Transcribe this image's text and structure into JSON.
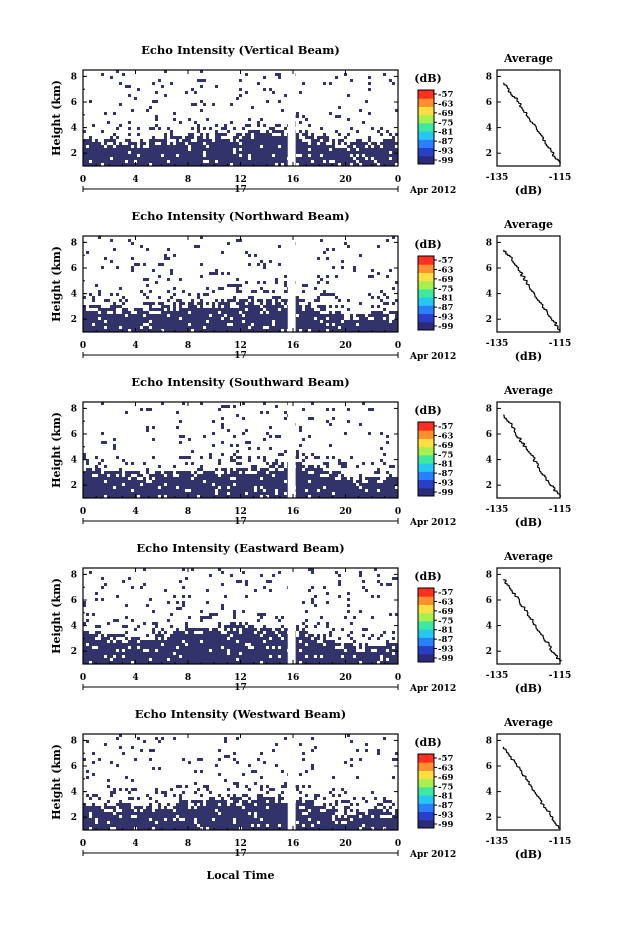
{
  "xlabel": "Local Time",
  "avg_title": "Average",
  "avg_xlabel": "(dB)",
  "colorbar_label": "(dB)",
  "colorbar_ticks": [
    "-57",
    "-63",
    "-69",
    "-75",
    "-81",
    "-87",
    "-93",
    "-99"
  ],
  "colorbar_colors": [
    "#2b2b78",
    "#2a3fc8",
    "#2a7fff",
    "#25c8f0",
    "#3de8a0",
    "#a8f050",
    "#ffe040",
    "#ff9030",
    "#ff3020"
  ],
  "plot_fill_color": "#33336b",
  "x_ticks": [
    "0",
    "4",
    "8",
    "12",
    "16",
    "20",
    "0"
  ],
  "date_day": "17",
  "date_month": "Apr 2012",
  "y_ticks": [
    "2",
    "4",
    "6",
    "8"
  ],
  "y_tick_values": [
    2,
    4,
    6,
    8
  ],
  "avg_y_ticks": [
    "2",
    "4",
    "6",
    "8"
  ],
  "avg_x_ticks": [
    "-135",
    "-115"
  ],
  "panels": [
    {
      "title": "Echo Intensity (Vertical Beam)",
      "ylabel": "Height (km)"
    },
    {
      "title": "Echo Intensity (Northward Beam)",
      "ylabel": "Height (km)"
    },
    {
      "title": "Echo Intensity (Southward Beam)",
      "ylabel": "Height (km)"
    },
    {
      "title": "Echo Intensity (Eastward Beam)",
      "ylabel": "Height (km)"
    },
    {
      "title": "Echo Intensity (Westward Beam)",
      "ylabel": "Height (km)"
    }
  ],
  "chart_data": [
    {
      "type": "heatmap",
      "title": "Echo Intensity (Vertical Beam)",
      "xlabel": "",
      "ylabel": "Height (km)",
      "xlim": [
        0,
        24
      ],
      "ylim": [
        1,
        8.5
      ],
      "colorbar_range": [
        -99,
        -57
      ],
      "top_of_dense_echo_km": [
        [
          0,
          3.3
        ],
        [
          4,
          3.1
        ],
        [
          8,
          3.6
        ],
        [
          12,
          3.8
        ],
        [
          16,
          4.1
        ],
        [
          20,
          2.9
        ],
        [
          24,
          3.2
        ]
      ],
      "data_gap_hours": [
        15.6,
        16.2
      ]
    },
    {
      "title": "Average",
      "type": "line",
      "xlabel": "(dB)",
      "xlim": [
        -135,
        -115
      ],
      "ylim": [
        1,
        8.5
      ],
      "x": [
        -133,
        -131,
        -129,
        -127,
        -125,
        -123,
        -121,
        -119,
        -117,
        -115
      ],
      "y": [
        7.5,
        6.8,
        6.2,
        5.5,
        4.8,
        4.0,
        3.3,
        2.6,
        1.8,
        1.2
      ]
    },
    {
      "type": "heatmap",
      "title": "Echo Intensity (Northward Beam)",
      "xlabel": "",
      "ylabel": "Height (km)",
      "xlim": [
        0,
        24
      ],
      "ylim": [
        1,
        8.5
      ],
      "colorbar_range": [
        -99,
        -57
      ],
      "top_of_dense_echo_km": [
        [
          0,
          3.4
        ],
        [
          4,
          3.0
        ],
        [
          8,
          3.5
        ],
        [
          12,
          3.7
        ],
        [
          16,
          3.9
        ],
        [
          20,
          2.5
        ],
        [
          24,
          2.8
        ]
      ],
      "data_gap_hours": [
        15.6,
        16.2
      ]
    },
    {
      "title": "Average",
      "type": "line",
      "xlabel": "(dB)",
      "xlim": [
        -135,
        -115
      ],
      "ylim": [
        1,
        8.5
      ],
      "x": [
        -133,
        -131,
        -129,
        -127,
        -125,
        -123,
        -121,
        -119,
        -117,
        -115
      ],
      "y": [
        7.4,
        6.9,
        6.1,
        5.4,
        4.6,
        3.9,
        3.2,
        2.5,
        1.8,
        1.1
      ]
    },
    {
      "type": "heatmap",
      "title": "Echo Intensity (Southward Beam)",
      "xlabel": "",
      "ylabel": "Height (km)",
      "xlim": [
        0,
        24
      ],
      "ylim": [
        1,
        8.5
      ],
      "colorbar_range": [
        -99,
        -57
      ],
      "top_of_dense_echo_km": [
        [
          0,
          3.5
        ],
        [
          4,
          3.2
        ],
        [
          8,
          3.3
        ],
        [
          12,
          3.6
        ],
        [
          16,
          4.0
        ],
        [
          20,
          2.8
        ],
        [
          24,
          2.9
        ]
      ],
      "data_gap_hours": [
        15.6,
        16.2
      ]
    },
    {
      "title": "Average",
      "type": "line",
      "xlabel": "(dB)",
      "xlim": [
        -135,
        -115
      ],
      "ylim": [
        1,
        8.5
      ],
      "x": [
        -133,
        -131,
        -129,
        -127,
        -125,
        -123,
        -121,
        -119,
        -117,
        -115
      ],
      "y": [
        7.5,
        6.9,
        6.0,
        5.3,
        4.7,
        3.9,
        3.1,
        2.4,
        1.7,
        1.1
      ]
    },
    {
      "type": "heatmap",
      "title": "Echo Intensity (Eastward Beam)",
      "xlabel": "",
      "ylabel": "Height (km)",
      "xlim": [
        0,
        24
      ],
      "ylim": [
        1,
        8.5
      ],
      "colorbar_range": [
        -99,
        -57
      ],
      "top_of_dense_echo_km": [
        [
          0,
          3.6
        ],
        [
          4,
          3.3
        ],
        [
          8,
          4.0
        ],
        [
          12,
          4.1
        ],
        [
          16,
          3.9
        ],
        [
          20,
          2.7
        ],
        [
          24,
          2.8
        ]
      ],
      "data_gap_hours": [
        15.6,
        16.2
      ]
    },
    {
      "title": "Average",
      "type": "line",
      "xlabel": "(dB)",
      "xlim": [
        -135,
        -115
      ],
      "ylim": [
        1,
        8.5
      ],
      "x": [
        -133,
        -131,
        -129,
        -127,
        -125,
        -123,
        -121,
        -119,
        -117,
        -115
      ],
      "y": [
        7.6,
        6.9,
        6.3,
        5.5,
        4.8,
        4.1,
        3.3,
        2.6,
        1.8,
        1.2
      ]
    },
    {
      "type": "heatmap",
      "title": "Echo Intensity (Westward Beam)",
      "xlabel": "Local Time",
      "ylabel": "Height (km)",
      "xlim": [
        0,
        24
      ],
      "ylim": [
        1,
        8.5
      ],
      "colorbar_range": [
        -99,
        -57
      ],
      "top_of_dense_echo_km": [
        [
          0,
          3.3
        ],
        [
          4,
          3.1
        ],
        [
          8,
          3.4
        ],
        [
          12,
          3.7
        ],
        [
          16,
          3.8
        ],
        [
          20,
          2.6
        ],
        [
          24,
          2.7
        ]
      ],
      "data_gap_hours": [
        15.6,
        16.2
      ]
    },
    {
      "title": "Average",
      "type": "line",
      "xlabel": "(dB)",
      "xlim": [
        -135,
        -115
      ],
      "ylim": [
        1,
        8.5
      ],
      "x": [
        -133,
        -131,
        -129,
        -127,
        -125,
        -123,
        -121,
        -119,
        -117,
        -115
      ],
      "y": [
        7.5,
        6.8,
        6.1,
        5.4,
        4.7,
        4.0,
        3.2,
        2.5,
        1.8,
        1.1
      ]
    }
  ]
}
